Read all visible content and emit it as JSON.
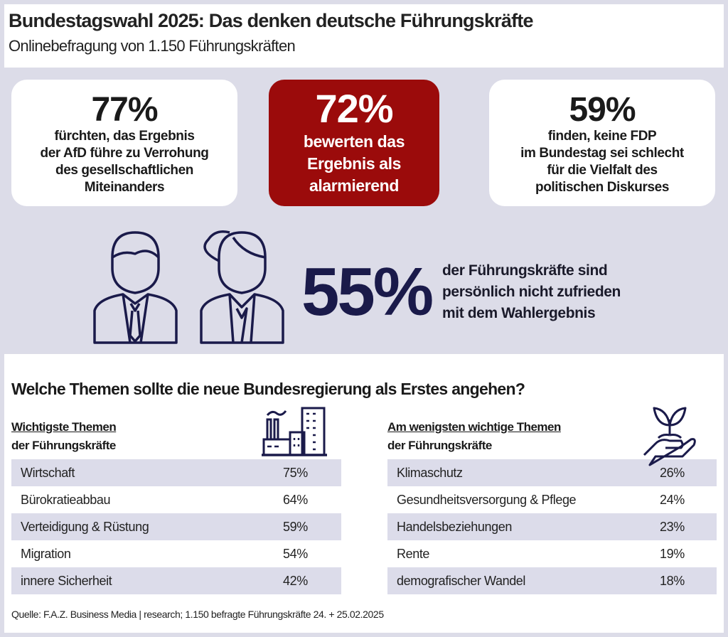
{
  "header": {
    "title": "Bundestagswahl 2025: Das denken deutsche Führungskräfte",
    "subtitle": "Onlinebefragung von 1.150 Führungskräften"
  },
  "cards": [
    {
      "value": "77%",
      "text": [
        "fürchten, das Ergebnis",
        "der AfD führe zu Verrohung",
        "des gesellschaftlichen",
        "Miteinanders"
      ]
    },
    {
      "value": "72%",
      "text": [
        "bewerten das",
        "Ergebnis als",
        "alarmierend"
      ]
    },
    {
      "value": "59%",
      "text": [
        "finden, keine FDP",
        "im Bundestag sei schlecht",
        "für die Vielfalt des",
        "politischen Diskurses"
      ]
    }
  ],
  "highlight": {
    "value": "55%",
    "text": [
      "der Führungskräfte sind",
      "persönlich nicht zufrieden",
      "mit dem Wahlergebnis"
    ],
    "icon": "businessman-businesswoman-icon"
  },
  "question": "Welche Themen sollte die neue Bundesregierung als Erstes angehen?",
  "most": {
    "heading": "Wichtigste Themen",
    "subheading": "der Führungskräfte",
    "icon": "industry-city-icon",
    "rows": [
      {
        "label": "Wirtschaft",
        "value": "75%"
      },
      {
        "label": "Bürokratieabbau",
        "value": "64%"
      },
      {
        "label": "Verteidigung & Rüstung",
        "value": "59%"
      },
      {
        "label": "Migration",
        "value": "54%"
      },
      {
        "label": "innere Sicherheit",
        "value": "42%"
      }
    ]
  },
  "least": {
    "heading": "Am wenigsten wichtige Themen",
    "subheading": "der Führungskräfte",
    "icon": "plant-in-hand-icon",
    "rows": [
      {
        "label": "Klimaschutz",
        "value": "26%"
      },
      {
        "label": "Gesundheitsversorgung & Pflege",
        "value": "24%"
      },
      {
        "label": "Handelsbeziehungen",
        "value": "23%"
      },
      {
        "label": "Rente",
        "value": "19%"
      },
      {
        "label": "demografischer Wandel",
        "value": "18%"
      }
    ]
  },
  "footer": "Quelle: F.A.Z. Business Media | research; 1.150  befragte Führungskräfte 24. + 25.02.2025",
  "colors": {
    "accent_red": "#9b0b0b",
    "navy": "#1a1a4a",
    "background": "#dcdce8",
    "row_shade": "#dcdcea"
  }
}
